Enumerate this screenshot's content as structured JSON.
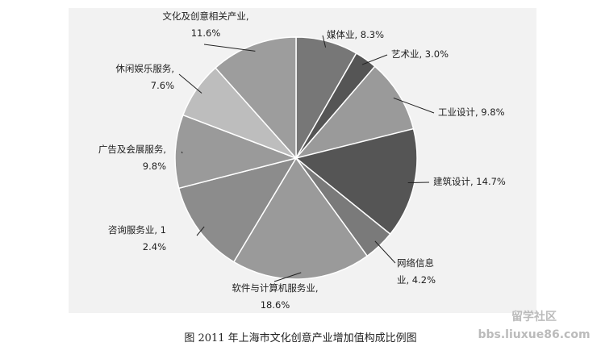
{
  "chart_data": {
    "type": "pie",
    "caption": "图  2011 年上海市文化创意产业增加值构成比例图",
    "watermark": "留学社区 bbs.liuxue86.com",
    "values": [
      8.3,
      3.0,
      9.8,
      14.7,
      4.2,
      18.6,
      12.4,
      9.8,
      7.6,
      11.6
    ],
    "value_labels": [
      "媒体业, 8.3%",
      "艺术业, 3.0%",
      "工业设计, 9.8%",
      "建筑设计, 14.7%",
      "网络信息业, 4.2%",
      "软件与计算机服务业, 18.6%",
      "咨询服务业, 12.4%",
      "广告及会展服务, 9.8%",
      "休闲娱乐服务, 7.6%",
      "文化及创意相关产业, 11.6%"
    ],
    "colors": [
      "#777777",
      "#555555",
      "#9a9a9a",
      "#555555",
      "#7a7a7a",
      "#9a9a9a",
      "#8c8c8c",
      "#9a9a9a",
      "#bdbdbd",
      "#9d9d9d"
    ]
  }
}
